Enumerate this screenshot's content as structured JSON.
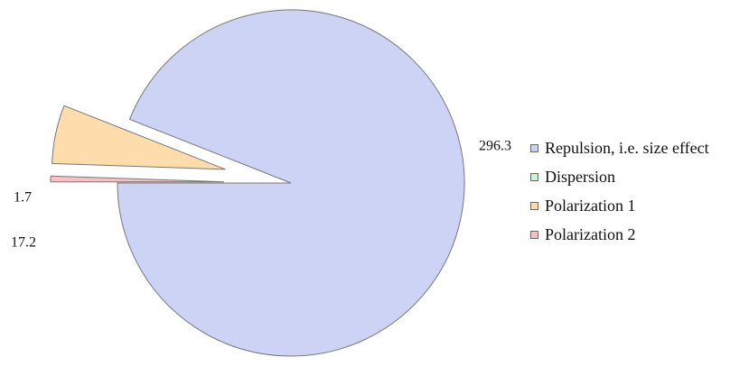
{
  "chart_data": {
    "type": "pie",
    "title": "",
    "series": [
      {
        "name": "Repulsion, i.e. size effect",
        "value": 296.3,
        "label": "296.3",
        "color": "#ccd3f5",
        "exploded": false
      },
      {
        "name": "Dispersion",
        "value": 0,
        "label": "",
        "color": "#c8f5cf",
        "exploded": true
      },
      {
        "name": "Polarization 1",
        "value": 17.2,
        "label": "17.2",
        "color": "#ffdcac",
        "exploded": true
      },
      {
        "name": "Polarization 2",
        "value": 1.7,
        "label": "1.7",
        "color": "#f9c0c4",
        "exploded": true
      }
    ],
    "legend_position": "right",
    "stroke_color": "#777777"
  }
}
